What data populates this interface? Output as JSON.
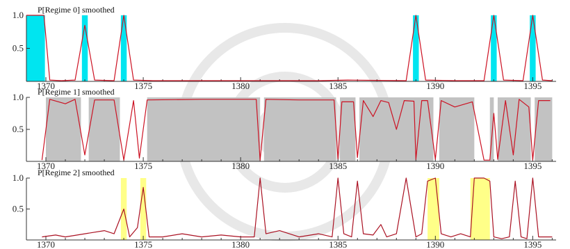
{
  "chart_data": [
    {
      "type": "line",
      "title": "P[Regime 0] smoothed",
      "xlim": [
        1369,
        1396.2
      ],
      "ylim": [
        0,
        1.0
      ],
      "xticks": [
        1370,
        1375,
        1380,
        1385,
        1390,
        1395
      ],
      "yticks": [
        0.5,
        1.0
      ],
      "shade_color": "#00e5f0",
      "shade": [
        [
          1369,
          1369.95
        ],
        [
          1371.85,
          1372.15
        ],
        [
          1373.85,
          1374.15
        ],
        [
          1388.85,
          1389.15
        ],
        [
          1392.85,
          1393.15
        ],
        [
          1394.85,
          1395.15
        ]
      ],
      "series": [
        {
          "color": "#cc1122",
          "x": [
            1369,
            1369.9,
            1370.2,
            1370.8,
            1371.5,
            1372,
            1372.5,
            1373.5,
            1374,
            1374.5,
            1375.5,
            1378,
            1381,
            1384,
            1385.5,
            1388.5,
            1389,
            1389.5,
            1391,
            1392.5,
            1393,
            1393.5,
            1394.5,
            1395,
            1395.5,
            1396
          ],
          "y": [
            1.0,
            1.0,
            0.02,
            0.01,
            0.02,
            0.85,
            0.02,
            0.01,
            1.0,
            0.02,
            0.01,
            0.01,
            0.01,
            0.01,
            0.02,
            0.01,
            1.0,
            0.02,
            0.01,
            0.01,
            1.0,
            0.02,
            0.01,
            1.0,
            0.02,
            0.01
          ]
        }
      ]
    },
    {
      "type": "line",
      "title": "P[Regime 1] smoothed",
      "xlim": [
        1369,
        1396.2
      ],
      "ylim": [
        0,
        1.0
      ],
      "xticks": [
        1370,
        1375,
        1380,
        1385,
        1390,
        1395
      ],
      "yticks": [
        0.5,
        1.0
      ],
      "shade_color": "#c2c2c2",
      "shade": [
        [
          1370,
          1371.8
        ],
        [
          1372.2,
          1373.8
        ],
        [
          1375.2,
          1381
        ],
        [
          1381.2,
          1384.9
        ],
        [
          1385.1,
          1385.9
        ],
        [
          1386.1,
          1389.9
        ],
        [
          1390.2,
          1392
        ],
        [
          1392.8,
          1393
        ],
        [
          1393.2,
          1394.9
        ],
        [
          1395.1,
          1396
        ]
      ],
      "series": [
        {
          "color": "#cc1122",
          "x": [
            1369.8,
            1370.2,
            1371,
            1371.5,
            1372,
            1372.5,
            1373.5,
            1374,
            1374.5,
            1374.8,
            1375.2,
            1378,
            1380.8,
            1381,
            1381.3,
            1383,
            1384.8,
            1385,
            1385.2,
            1385.8,
            1386,
            1386.3,
            1386.8,
            1387.2,
            1387.6,
            1388,
            1388.4,
            1388.9,
            1389,
            1389.3,
            1389.6,
            1390,
            1390.3,
            1391,
            1391.9,
            1392.5,
            1392.8,
            1393,
            1393.2,
            1393.6,
            1394,
            1394.3,
            1394.8,
            1395,
            1395.3,
            1395.9
          ],
          "y": [
            0.02,
            0.97,
            0.9,
            0.97,
            0.1,
            0.96,
            0.96,
            0.02,
            0.95,
            0.05,
            0.96,
            0.97,
            0.97,
            0.02,
            0.97,
            0.96,
            0.96,
            0.04,
            0.93,
            0.93,
            0.06,
            0.95,
            0.7,
            0.95,
            0.92,
            0.5,
            0.95,
            0.94,
            0.03,
            0.95,
            0.95,
            0.03,
            0.95,
            0.85,
            0.93,
            0.02,
            0.02,
            0.75,
            0.03,
            0.95,
            0.1,
            0.97,
            0.85,
            0.02,
            0.95,
            0.95
          ]
        }
      ]
    },
    {
      "type": "line",
      "title": "P[Regime 2] smoothed",
      "xlim": [
        1369,
        1396.2
      ],
      "ylim": [
        0,
        1.0
      ],
      "xticks": [
        1370,
        1375,
        1380,
        1385,
        1390,
        1395
      ],
      "yticks": [
        0.5,
        1.0
      ],
      "shade_color": "#ffff88",
      "shade": [
        [
          1373.85,
          1374.15
        ],
        [
          1374.85,
          1375.15
        ],
        [
          1389.6,
          1390.2
        ],
        [
          1391.8,
          1392.8
        ]
      ],
      "series": [
        {
          "color": "#aa1122",
          "x": [
            1369.8,
            1370.5,
            1371,
            1372,
            1373,
            1373.5,
            1374,
            1374.3,
            1374.7,
            1375,
            1375.3,
            1376,
            1377,
            1378,
            1379,
            1380,
            1380.7,
            1381,
            1381.3,
            1382,
            1383,
            1384,
            1384.7,
            1385,
            1385.3,
            1385.7,
            1386,
            1386.3,
            1386.8,
            1387.2,
            1387.5,
            1388,
            1388.5,
            1389,
            1389.3,
            1389.6,
            1390,
            1390.3,
            1390.8,
            1391.3,
            1391.8,
            1392,
            1392.5,
            1392.8,
            1393,
            1393.4,
            1393.8,
            1394.1,
            1394.4,
            1394.7,
            1395,
            1395.3,
            1396
          ],
          "y": [
            0.05,
            0.08,
            0.05,
            0.1,
            0.15,
            0.1,
            0.5,
            0.05,
            0.2,
            0.85,
            0.05,
            0.05,
            0.1,
            0.05,
            0.08,
            0.05,
            0.05,
            1.0,
            0.1,
            0.15,
            0.05,
            0.1,
            0.05,
            1.0,
            0.1,
            0.05,
            0.95,
            0.1,
            0.08,
            0.25,
            0.05,
            0.1,
            1.0,
            0.05,
            0.1,
            0.95,
            1.0,
            0.1,
            0.05,
            0.1,
            0.05,
            1.0,
            1.0,
            0.95,
            0.05,
            0.02,
            0.05,
            0.95,
            0.05,
            0.02,
            1.0,
            0.05,
            0.05
          ]
        }
      ]
    }
  ]
}
